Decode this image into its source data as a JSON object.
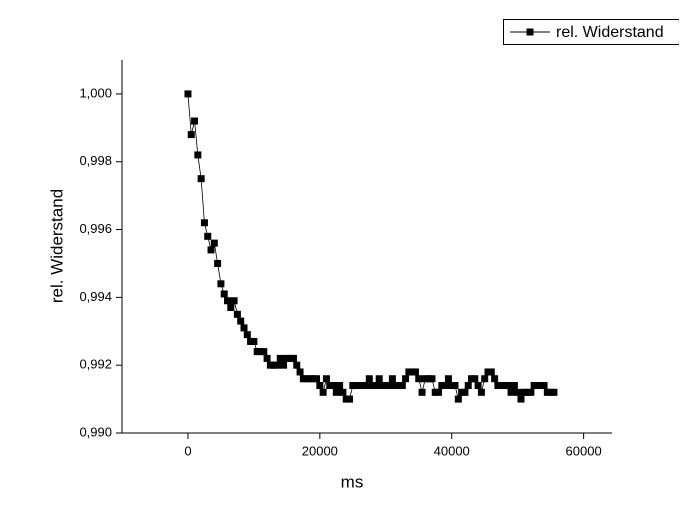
{
  "chart_data": {
    "type": "line",
    "xlabel": "ms",
    "ylabel": "rel. Widerstand",
    "x": [
      0,
      500,
      1000,
      1500,
      2000,
      2500,
      3000,
      3500,
      4000,
      4500,
      5000,
      5500,
      6000,
      6500,
      7000,
      7500,
      8000,
      8500,
      9000,
      9500,
      10000,
      10500,
      11000,
      11500,
      12000,
      12500,
      13000,
      13500,
      14000,
      14500,
      15000,
      15500,
      16000,
      16500,
      17000,
      17500,
      18000,
      18500,
      19000,
      19500,
      20000,
      20500,
      21000,
      21500,
      22000,
      22500,
      23000,
      23500,
      24000,
      24500,
      25000,
      25500,
      26000,
      26500,
      27000,
      27500,
      28000,
      28500,
      29000,
      29500,
      30000,
      30500,
      31000,
      31500,
      32000,
      32500,
      33000,
      33500,
      34000,
      34500,
      35000,
      35500,
      36000,
      36500,
      37000,
      37500,
      38000,
      38500,
      39000,
      39500,
      40000,
      40500,
      41000,
      41500,
      42000,
      42500,
      43000,
      43500,
      44000,
      44500,
      45000,
      45500,
      46000,
      46500,
      47000,
      47500,
      48000,
      48500,
      49000,
      49500,
      50000,
      50500,
      51000,
      51500,
      52000,
      52500,
      53000,
      53500,
      54000,
      54500,
      55000,
      55500
    ],
    "series": [
      {
        "name": "rel. Widerstand",
        "color": "#000000",
        "values": [
          1.0,
          0.9988,
          0.9992,
          0.9982,
          0.9975,
          0.9962,
          0.9958,
          0.9954,
          0.9956,
          0.995,
          0.9944,
          0.9941,
          0.9939,
          0.9937,
          0.9939,
          0.9935,
          0.9933,
          0.9931,
          0.9929,
          0.9927,
          0.9927,
          0.9924,
          0.9924,
          0.9924,
          0.9922,
          0.992,
          0.992,
          0.992,
          0.9922,
          0.992,
          0.9922,
          0.9922,
          0.9922,
          0.992,
          0.9918,
          0.9916,
          0.9916,
          0.9916,
          0.9916,
          0.9916,
          0.9914,
          0.9912,
          0.9916,
          0.9914,
          0.9914,
          0.9912,
          0.9914,
          0.9912,
          0.991,
          0.991,
          0.9914,
          0.9914,
          0.9914,
          0.9914,
          0.9914,
          0.9916,
          0.9914,
          0.9914,
          0.9916,
          0.9914,
          0.9914,
          0.9914,
          0.9916,
          0.9914,
          0.9914,
          0.9914,
          0.9916,
          0.9918,
          0.9918,
          0.9918,
          0.9916,
          0.9912,
          0.9916,
          0.9916,
          0.9916,
          0.9912,
          0.9912,
          0.9914,
          0.9914,
          0.9916,
          0.9914,
          0.9914,
          0.991,
          0.9912,
          0.9912,
          0.9914,
          0.9916,
          0.9916,
          0.9914,
          0.9912,
          0.9916,
          0.9918,
          0.9918,
          0.9916,
          0.9914,
          0.9914,
          0.9914,
          0.9914,
          0.9912,
          0.9914,
          0.9912,
          0.991,
          0.9912,
          0.9912,
          0.9912,
          0.9914,
          0.9914,
          0.9914,
          0.9914,
          0.9912,
          0.9912,
          0.9912
        ]
      }
    ],
    "xlim": [
      -10000,
      64000
    ],
    "xticks": [
      0,
      20000,
      40000,
      60000
    ],
    "ylim": [
      0.99,
      1.001
    ],
    "yticks": [
      {
        "value": 0.99,
        "label": "0,990"
      },
      {
        "value": 0.992,
        "label": "0,992"
      },
      {
        "value": 0.994,
        "label": "0,994"
      },
      {
        "value": 0.996,
        "label": "0,996"
      },
      {
        "value": 0.998,
        "label": "0,998"
      },
      {
        "value": 1.0,
        "label": "1,000"
      }
    ],
    "marker": "square",
    "legend": "upper right",
    "grid": false
  }
}
